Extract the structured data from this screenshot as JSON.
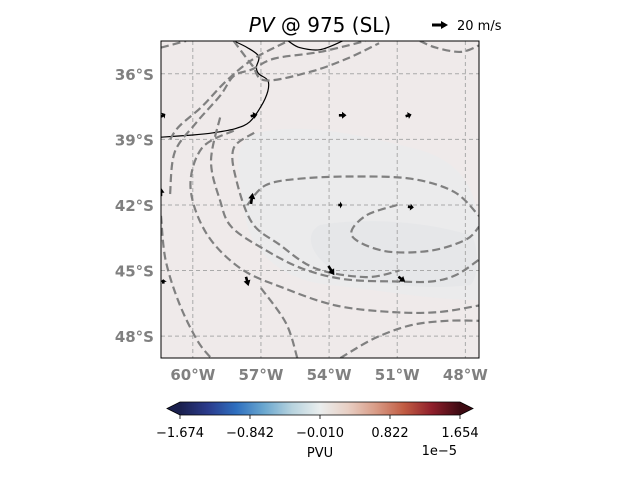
{
  "chart_data": {
    "type": "map",
    "title_italic": "PV",
    "title_rest": " @ 975 (SL)",
    "quiver_key_label": "20 m/s",
    "lon_range": [
      -61.4,
      -47.4
    ],
    "lat_range": [
      -49.0,
      -34.5
    ],
    "lat_ticks": [
      {
        "value": -36,
        "label": "36°S"
      },
      {
        "value": -39,
        "label": "39°S"
      },
      {
        "value": -42,
        "label": "42°S"
      },
      {
        "value": -45,
        "label": "45°S"
      },
      {
        "value": -48,
        "label": "48°S"
      }
    ],
    "lon_ticks": [
      {
        "value": -60,
        "label": "60°W"
      },
      {
        "value": -57,
        "label": "57°W"
      },
      {
        "value": -54,
        "label": "54°W"
      },
      {
        "value": -51,
        "label": "51°W"
      },
      {
        "value": -48,
        "label": "48°W"
      }
    ],
    "grid": true,
    "colorbar": {
      "label": "PVU",
      "exponent": "1e−5",
      "min": -1.674,
      "max": 1.654,
      "ticks": [
        {
          "value": -1.674,
          "label": "−1.674"
        },
        {
          "value": -0.842,
          "label": "−0.842"
        },
        {
          "value": -0.01,
          "label": "−0.010"
        },
        {
          "value": 0.822,
          "label": "0.822"
        },
        {
          "value": 1.654,
          "label": "1.654"
        }
      ],
      "colors": [
        "#1a1f4d",
        "#2b3b8c",
        "#2e6fbf",
        "#6aa7cf",
        "#b7d3de",
        "#eaeeee",
        "#e8cfc4",
        "#d89b86",
        "#c15c43",
        "#8f1f2b",
        "#3d0a12"
      ]
    },
    "contours": [
      [
        [
          -61.4,
          -34.8
        ],
        [
          -60.3,
          -34.5
        ]
      ],
      [
        [
          -58.2,
          -34.5
        ],
        [
          -57.4,
          -35.6
        ],
        [
          -56.8,
          -36.3
        ],
        [
          -54.8,
          -35.9
        ],
        [
          -53.2,
          -35.3
        ],
        [
          -51.8,
          -34.6
        ]
      ],
      [
        [
          -50.0,
          -34.5
        ],
        [
          -49.3,
          -34.8
        ],
        [
          -48.2,
          -35.0
        ],
        [
          -47.4,
          -34.7
        ]
      ],
      [
        [
          -61.0,
          -41.5
        ],
        [
          -60.8,
          -39.6
        ],
        [
          -59.9,
          -38.3
        ],
        [
          -58.8,
          -37.0
        ],
        [
          -58.2,
          -36.1
        ],
        [
          -57.4,
          -35.8
        ],
        [
          -56.4,
          -35.3
        ],
        [
          -54.4,
          -35.0
        ],
        [
          -52.4,
          -34.5
        ]
      ],
      [
        [
          -61.0,
          -39.0
        ],
        [
          -60.6,
          -38.4
        ],
        [
          -59.6,
          -37.5
        ],
        [
          -58.5,
          -36.3
        ],
        [
          -57.3,
          -35.3
        ],
        [
          -55.8,
          -34.5
        ]
      ],
      [
        [
          -58.8,
          -38.0
        ],
        [
          -59.2,
          -40.0
        ],
        [
          -58.8,
          -41.8
        ],
        [
          -58.3,
          -43.0
        ],
        [
          -56.9,
          -44.0
        ],
        [
          -55.2,
          -44.9
        ],
        [
          -53.3,
          -45.4
        ],
        [
          -51.0,
          -45.5
        ],
        [
          -49.5,
          -45.5
        ],
        [
          -48.4,
          -45.2
        ],
        [
          -47.4,
          -44.5
        ]
      ],
      [
        [
          -57.6,
          -42.0
        ],
        [
          -56.8,
          -41.1
        ],
        [
          -55.3,
          -40.8
        ],
        [
          -53.0,
          -40.7
        ],
        [
          -50.4,
          -40.8
        ],
        [
          -48.5,
          -41.4
        ],
        [
          -47.4,
          -42.5
        ]
      ],
      [
        [
          -57.3,
          -38.7
        ],
        [
          -58.2,
          -39.4
        ],
        [
          -58.1,
          -40.8
        ],
        [
          -57.4,
          -42.8
        ],
        [
          -56.2,
          -43.8
        ],
        [
          -54.6,
          -44.9
        ],
        [
          -52.4,
          -45.3
        ],
        [
          -50.9,
          -45.0
        ]
      ],
      [
        [
          -51.0,
          -42.0
        ],
        [
          -52.4,
          -42.5
        ],
        [
          -53.0,
          -43.4
        ],
        [
          -51.6,
          -44.1
        ],
        [
          -49.6,
          -44.1
        ],
        [
          -48.0,
          -43.6
        ],
        [
          -47.4,
          -43.0
        ]
      ],
      [
        [
          -58.2,
          -38.6
        ],
        [
          -59.6,
          -39.4
        ],
        [
          -60.1,
          -41.2
        ],
        [
          -59.4,
          -43.3
        ],
        [
          -57.9,
          -44.9
        ],
        [
          -56.0,
          -45.8
        ],
        [
          -53.7,
          -46.6
        ],
        [
          -51.2,
          -46.9
        ],
        [
          -49.2,
          -46.9
        ],
        [
          -47.4,
          -46.6
        ]
      ],
      [
        [
          -61.4,
          -42.5
        ],
        [
          -61.2,
          -44.5
        ],
        [
          -60.6,
          -46.5
        ],
        [
          -59.8,
          -48.2
        ],
        [
          -59.2,
          -49.0
        ]
      ],
      [
        [
          -57.0,
          -45.8
        ],
        [
          -55.9,
          -47.4
        ],
        [
          -55.4,
          -49.0
        ]
      ],
      [
        [
          -53.5,
          -49.0
        ],
        [
          -52.0,
          -48.1
        ],
        [
          -50.4,
          -47.5
        ],
        [
          -48.8,
          -47.3
        ],
        [
          -47.4,
          -47.3
        ]
      ]
    ],
    "coastlines": [
      [
        [
          -61.4,
          -38.9
        ],
        [
          -60.0,
          -38.8
        ],
        [
          -59.1,
          -38.7
        ],
        [
          -58.1,
          -38.5
        ],
        [
          -57.5,
          -38.2
        ],
        [
          -57.0,
          -37.5
        ],
        [
          -56.7,
          -36.8
        ],
        [
          -56.7,
          -36.3
        ],
        [
          -57.1,
          -36.0
        ],
        [
          -57.2,
          -35.7
        ],
        [
          -57.1,
          -35.2
        ],
        [
          -57.6,
          -34.8
        ],
        [
          -58.2,
          -34.5
        ]
      ],
      [
        [
          -55.8,
          -34.5
        ],
        [
          -55.3,
          -34.8
        ],
        [
          -54.4,
          -34.9
        ],
        [
          -53.4,
          -34.5
        ]
      ]
    ],
    "wind_arrows": [
      {
        "lon": -61.3,
        "lat": -37.9,
        "u": 5,
        "v": 3
      },
      {
        "lon": -57.3,
        "lat": -37.9,
        "u": 8,
        "v": 2
      },
      {
        "lon": -53.4,
        "lat": -37.9,
        "u": 9,
        "v": 0
      },
      {
        "lon": -50.5,
        "lat": -37.9,
        "u": 7,
        "v": 2
      },
      {
        "lon": -61.4,
        "lat": -41.4,
        "u": 0,
        "v": 10
      },
      {
        "lon": -57.4,
        "lat": -41.7,
        "u": 2,
        "v": 13
      },
      {
        "lon": -53.5,
        "lat": -42.0,
        "u": 5,
        "v": 0
      },
      {
        "lon": -50.4,
        "lat": -42.1,
        "u": 7,
        "v": -1
      },
      {
        "lon": -61.3,
        "lat": -45.5,
        "u": 0,
        "v": 5
      },
      {
        "lon": -57.6,
        "lat": -45.5,
        "u": 3,
        "v": -11
      },
      {
        "lon": -53.9,
        "lat": -45.0,
        "u": 7,
        "v": -11
      },
      {
        "lon": -50.8,
        "lat": -45.4,
        "u": 8,
        "v": -6
      }
    ]
  }
}
